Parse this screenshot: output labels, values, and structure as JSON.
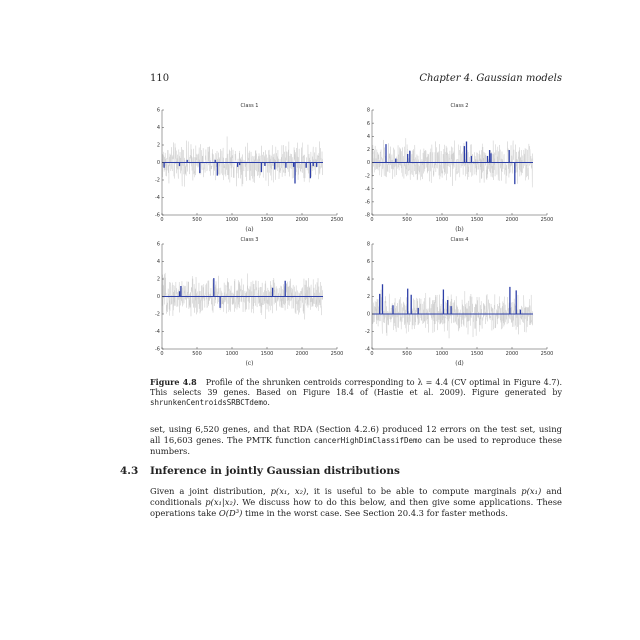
{
  "page": {
    "number": "110",
    "chapter": "Chapter 4.   Gaussian models"
  },
  "figure": {
    "label": "Figure 4.8",
    "caption_main": "Profile of the shrunken centroids corresponding to λ = 4.4 (CV optimal in Figure 4.7). This selects 39 genes. Based on Figure 18.4 of (Hastie et al. 2009). Figure generated by",
    "caption_code": "shrunkenCentroidsSRBCTdemo",
    "caption_end": "."
  },
  "colors": {
    "noise": "#c8c8c8",
    "signal": "#2d3fa8",
    "axis": "#444444"
  },
  "chart_data": [
    {
      "type": "line",
      "title": "Class 1",
      "sublabel": "(a)",
      "xlim": [
        0,
        2500
      ],
      "ylim": [
        -6,
        6
      ],
      "xticks": [
        "0",
        "500",
        "1000",
        "1500",
        "2000",
        "2500"
      ],
      "yticks": [
        "-6",
        "-4",
        "-2",
        "0",
        "2",
        "4",
        "6"
      ],
      "series": [
        {
          "x": [
            30,
            250,
            360,
            540,
            760,
            790,
            1080,
            1110,
            1420,
            1470,
            1610,
            1770,
            1880,
            1900,
            2060,
            2120,
            2160,
            2210
          ],
          "values": [
            -0.6,
            -0.4,
            0.3,
            -1.2,
            0.3,
            -1.5,
            -0.5,
            -0.3,
            -1.1,
            -0.4,
            -0.8,
            -0.6,
            -0.5,
            -2.4,
            -0.6,
            -1.8,
            -0.4,
            -0.5
          ]
        }
      ]
    },
    {
      "type": "line",
      "title": "Class 2",
      "sublabel": "(b)",
      "xlim": [
        0,
        2500
      ],
      "ylim": [
        -8,
        8
      ],
      "xticks": [
        "0",
        "500",
        "1000",
        "1500",
        "2000",
        "2500"
      ],
      "yticks": [
        "-8",
        "-6",
        "-4",
        "-2",
        "0",
        "2",
        "4",
        "6",
        "8"
      ],
      "series": [
        {
          "x": [
            200,
            340,
            510,
            540,
            1320,
            1350,
            1420,
            1650,
            1680,
            1700,
            1960,
            2040
          ],
          "values": [
            2.8,
            0.6,
            1.3,
            1.8,
            2.5,
            3.2,
            1.0,
            1.0,
            1.9,
            1.4,
            1.9,
            -3.3
          ]
        }
      ]
    },
    {
      "type": "line",
      "title": "Class 3",
      "sublabel": "(c)",
      "xlim": [
        0,
        2500
      ],
      "ylim": [
        -6,
        6
      ],
      "xticks": [
        "0",
        "500",
        "1000",
        "1500",
        "2000",
        "2500"
      ],
      "yticks": [
        "-6",
        "-4",
        "-2",
        "0",
        "2",
        "4",
        "6"
      ],
      "series": [
        {
          "x": [
            250,
            270,
            740,
            830,
            1580,
            1760
          ],
          "values": [
            0.6,
            1.2,
            2.1,
            -1.3,
            1.0,
            1.8
          ]
        }
      ]
    },
    {
      "type": "line",
      "title": "Class 4",
      "sublabel": "(d)",
      "xlim": [
        0,
        2500
      ],
      "ylim": [
        -4,
        8
      ],
      "xticks": [
        "0",
        "500",
        "1000",
        "1500",
        "2000",
        "2500"
      ],
      "yticks": [
        "-4",
        "-2",
        "0",
        "2",
        "4",
        "6",
        "8"
      ],
      "series": [
        {
          "x": [
            110,
            150,
            300,
            510,
            560,
            660,
            1020,
            1080,
            1130,
            1970,
            2060,
            2120
          ],
          "values": [
            2.3,
            3.4,
            1.0,
            2.9,
            2.2,
            0.7,
            2.8,
            1.6,
            0.9,
            3.1,
            2.7,
            0.5
          ]
        }
      ]
    }
  ],
  "body": {
    "para1_a": "set, using 6,520 genes, and that RDA (Section 4.2.6) produced 12 errors on the test set, using all 16,603 genes. The PMTK function",
    "para1_code": "cancerHighDimClassifDemo",
    "para1_b": "can be used to reproduce these numbers.",
    "section_number": "4.3",
    "section_title": "Inference in jointly Gaussian distributions",
    "para2_a": "Given a joint distribution,",
    "para2_m1": "p(x₁, x₂)",
    "para2_b": ", it is useful to be able to compute marginals",
    "para2_m2": "p(x₁)",
    "para2_c": "and conditionals",
    "para2_m3": "p(x₁|x₂)",
    "para2_d": ". We discuss how to do this below, and then give some applications. These operations take",
    "para2_m4": "O(D³)",
    "para2_e": "time in the worst case. See Section 20.4.3 for faster methods."
  }
}
